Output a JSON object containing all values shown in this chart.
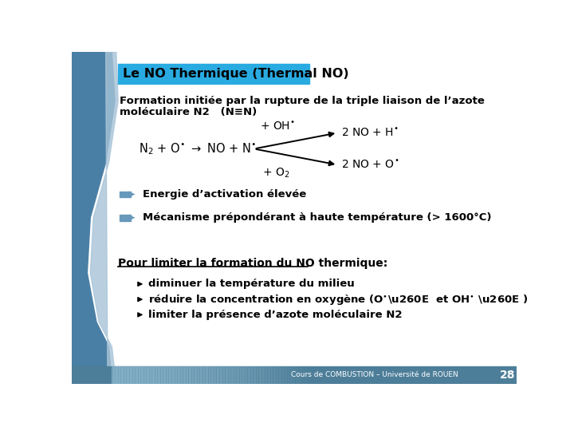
{
  "title": "Le NO Thermique (Thermal NO)",
  "title_bg": "#29ABE2",
  "title_color": "#000000",
  "bg_color": "#FFFFFF",
  "footer_text": "Cours de COMBUSTION – Université de ROUEN",
  "footer_bg": "#4D7E99",
  "page_number": "28",
  "body_text_color": "#000000",
  "arrow_color": "#6699BB",
  "left_band_color": "#4A7FA5",
  "left_band_light": "#A8C4D8"
}
